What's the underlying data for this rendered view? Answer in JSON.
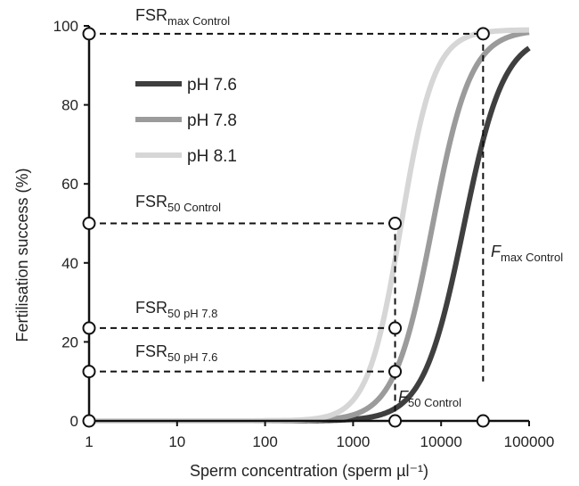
{
  "chart_data": {
    "type": "line",
    "xscale": "log",
    "xlim": [
      1,
      100000
    ],
    "ylim": [
      0,
      100
    ],
    "xticks": [
      "1",
      "10",
      "100",
      "1000",
      "10000",
      "100000"
    ],
    "yticks": [
      "0",
      "20",
      "40",
      "60",
      "80",
      "100"
    ],
    "xlabel": "Sperm concentration (sperm µl⁻¹)",
    "ylabel": "Fertilisation success (%)",
    "legend": "top-left",
    "series": [
      {
        "name": "pH 7.6",
        "color": "#3f3f3f",
        "max": 98,
        "x50": 18000,
        "slope": 1.9
      },
      {
        "name": "pH 7.8",
        "color": "#9b9b9b",
        "max": 99,
        "x50": 8000,
        "slope": 2.0
      },
      {
        "name": "pH 8.1",
        "color": "#d6d6d6",
        "max": 99,
        "x50": 3500,
        "slope": 2.3
      }
    ],
    "reference_points": {
      "fsr_max_control": 98,
      "fsr_50_control": 50,
      "fsr_50_ph78": 23.5,
      "fsr_50_ph76": 12.5,
      "f50_control": 3000,
      "fmax_control": 30000
    },
    "annotations": {
      "fsr_max": {
        "main": "FSR",
        "sub": "max Control"
      },
      "fsr_50_control": {
        "main": "FSR",
        "sub": "50 Control"
      },
      "fsr_50_ph78": {
        "main": "FSR",
        "sub": "50 pH 7.8"
      },
      "fsr_50_ph76": {
        "main": "FSR",
        "sub": "50 pH 7.6"
      },
      "f50": {
        "main": "F",
        "sub": "50 Control"
      },
      "fmax": {
        "main": "F",
        "sub": "max Control"
      }
    }
  }
}
